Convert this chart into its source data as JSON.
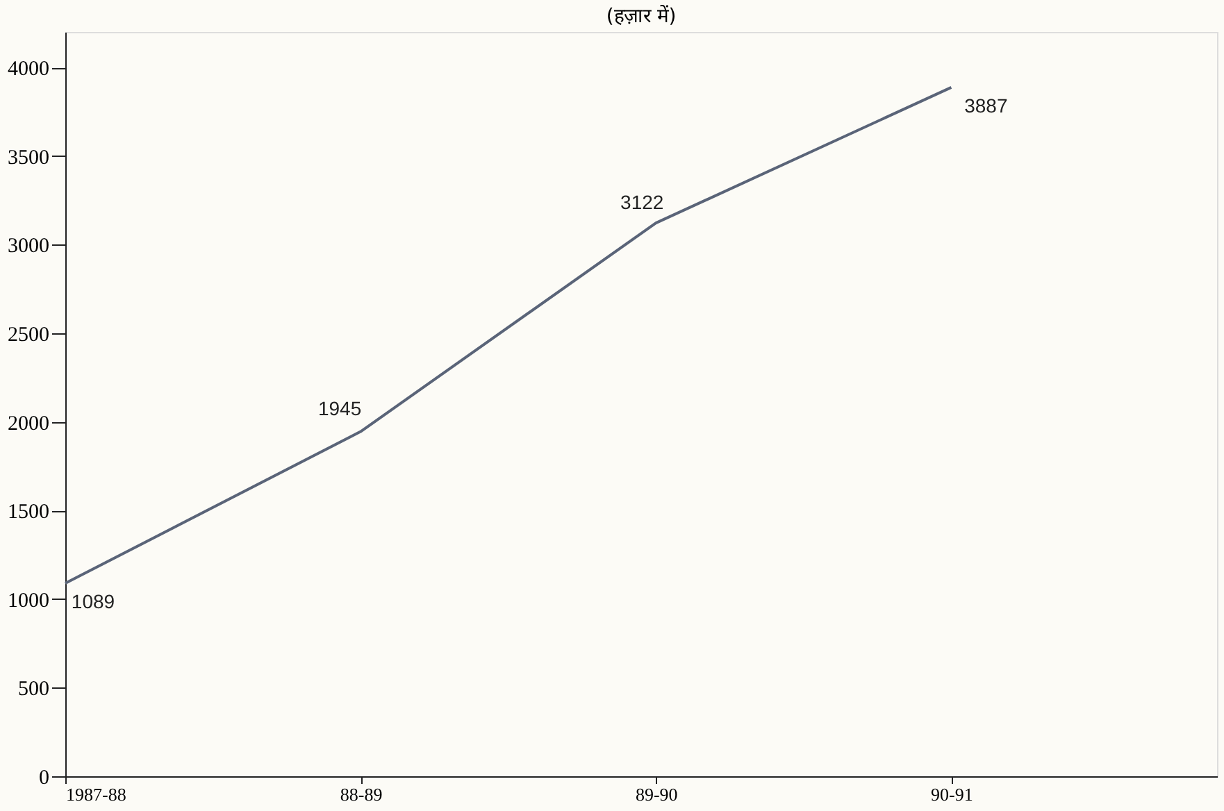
{
  "chart_data": {
    "type": "line",
    "title": "(हज़ार में)",
    "categories": [
      "1987-88",
      "88-89",
      "89-90",
      "90-91"
    ],
    "series": [
      {
        "color": "#5a6478",
        "values": [
          1089,
          1945,
          3122,
          3887
        ]
      }
    ],
    "ylim": [
      0,
      4200
    ],
    "yticks": [
      0,
      500,
      1000,
      1500,
      2000,
      2500,
      3000,
      3500,
      4000
    ],
    "data_labels": true,
    "grid": false,
    "legend": false,
    "marker": "none",
    "line_style": "solid"
  }
}
